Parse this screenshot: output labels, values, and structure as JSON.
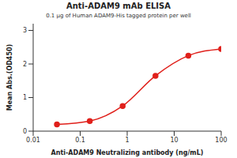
{
  "chart_data": {
    "type": "line",
    "title": "Anti-ADAM9 mAb ELISA",
    "subtitle": "0.1 μg of Human ADAM9-His tagged protein per well",
    "x_label": "Anti-ADAM9 Neutralizing antibody (ng/mL)",
    "y_label": "Mean Abs.(OD450)",
    "x": [
      0.032,
      0.16,
      0.8,
      4,
      20,
      100
    ],
    "values": [
      0.2,
      0.3,
      0.75,
      1.65,
      2.25,
      2.45
    ],
    "color": "#e0201b",
    "marker": "circle",
    "log": "x",
    "xlim": [
      0.01,
      100
    ],
    "xticks": [
      0.01,
      0.1,
      1,
      10,
      100
    ],
    "ylim": [
      0,
      3.2
    ],
    "yticks": [
      0,
      1,
      2,
      3
    ],
    "grid": false
  }
}
